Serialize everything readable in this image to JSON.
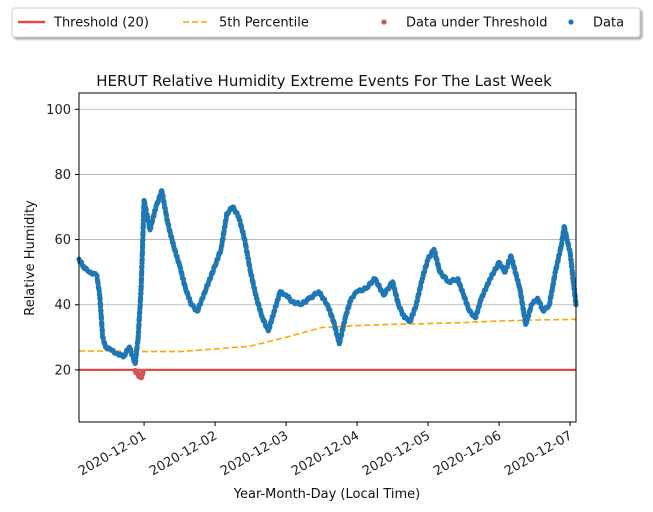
{
  "chart_data": {
    "type": "scatter",
    "title": "HERUT Relative Humidity Extreme Events For The Last Week",
    "xlabel": "Year-Month-Day (Local Time)",
    "ylabel": "Relative Humidity",
    "x_range": [
      "2020-11-30T02:00",
      "2020-12-07T02:00"
    ],
    "ylim": [
      4,
      105
    ],
    "x_ticks": [
      "2020-12-01",
      "2020-12-02",
      "2020-12-03",
      "2020-12-04",
      "2020-12-05",
      "2020-12-06",
      "2020-12-07"
    ],
    "y_ticks": [
      20,
      40,
      60,
      80,
      100
    ],
    "grid": "horizontal",
    "legend": {
      "placement": "top-outside",
      "entries": [
        {
          "label": "Threshold (20)",
          "color": "#e24a4a",
          "marker": "line"
        },
        {
          "label": "5th Percentile",
          "color": "#ffa500",
          "marker": "dashed-line"
        },
        {
          "label": "Data under Threshold",
          "color": "#d35454",
          "marker": "dot"
        },
        {
          "label": "Data",
          "color": "#1f77b4",
          "marker": "dot"
        }
      ]
    },
    "threshold": {
      "name": "Threshold (20)",
      "value": 20,
      "color": "#e24a4a"
    },
    "percentile_5th": {
      "name": "5th Percentile",
      "color": "#ffa500",
      "points": [
        [
          "2020-11-30T02:00",
          25.8
        ],
        [
          "2020-11-30T14:00",
          25.8
        ],
        [
          "2020-12-01T00:00",
          25.6
        ],
        [
          "2020-12-01T12:00",
          25.6
        ],
        [
          "2020-12-02T00:00",
          26.4
        ],
        [
          "2020-12-02T12:00",
          27.3
        ],
        [
          "2020-12-03T00:00",
          30.0
        ],
        [
          "2020-12-03T12:00",
          33.0
        ],
        [
          "2020-12-04T00:00",
          33.6
        ],
        [
          "2020-12-04T12:00",
          34.0
        ],
        [
          "2020-12-05T00:00",
          34.2
        ],
        [
          "2020-12-05T12:00",
          34.5
        ],
        [
          "2020-12-06T00:00",
          35.0
        ],
        [
          "2020-12-06T12:00",
          35.3
        ],
        [
          "2020-12-07T02:00",
          35.5
        ]
      ]
    },
    "series": [
      {
        "name": "Data",
        "color": "#1f77b4",
        "points": [
          [
            "2020-11-30T02:00",
            54
          ],
          [
            "2020-11-30T04:00",
            51
          ],
          [
            "2020-11-30T06:00",
            50
          ],
          [
            "2020-11-30T08:00",
            49
          ],
          [
            "2020-11-30T09:00",
            43
          ],
          [
            "2020-11-30T10:00",
            30
          ],
          [
            "2020-11-30T11:00",
            27
          ],
          [
            "2020-11-30T13:00",
            26
          ],
          [
            "2020-11-30T15:00",
            25
          ],
          [
            "2020-11-30T17:00",
            24
          ],
          [
            "2020-11-30T19:00",
            27
          ],
          [
            "2020-11-30T21:00",
            22
          ],
          [
            "2020-11-30T22:00",
            30
          ],
          [
            "2020-11-30T23:00",
            45
          ],
          [
            "2020-12-01T00:00",
            72
          ],
          [
            "2020-12-01T02:00",
            63
          ],
          [
            "2020-12-01T04:00",
            70
          ],
          [
            "2020-12-01T06:00",
            75
          ],
          [
            "2020-12-01T08:00",
            65
          ],
          [
            "2020-12-01T10:00",
            58
          ],
          [
            "2020-12-01T12:00",
            52
          ],
          [
            "2020-12-01T14:00",
            45
          ],
          [
            "2020-12-01T16:00",
            40
          ],
          [
            "2020-12-01T18:00",
            38
          ],
          [
            "2020-12-01T21:00",
            45
          ],
          [
            "2020-12-02T00:00",
            52
          ],
          [
            "2020-12-02T02:00",
            57
          ],
          [
            "2020-12-02T04:00",
            68
          ],
          [
            "2020-12-02T06:00",
            70
          ],
          [
            "2020-12-02T08:00",
            67
          ],
          [
            "2020-12-02T10:00",
            60
          ],
          [
            "2020-12-02T12:00",
            50
          ],
          [
            "2020-12-02T14:00",
            42
          ],
          [
            "2020-12-02T16:00",
            36
          ],
          [
            "2020-12-02T18:00",
            32
          ],
          [
            "2020-12-02T20:00",
            38
          ],
          [
            "2020-12-02T22:00",
            44
          ],
          [
            "2020-12-03T00:00",
            43
          ],
          [
            "2020-12-03T02:00",
            41
          ],
          [
            "2020-12-03T05:00",
            40
          ],
          [
            "2020-12-03T08:00",
            42
          ],
          [
            "2020-12-03T11:00",
            44
          ],
          [
            "2020-12-03T14:00",
            40
          ],
          [
            "2020-12-03T16:00",
            35
          ],
          [
            "2020-12-03T18:00",
            28
          ],
          [
            "2020-12-03T20:00",
            36
          ],
          [
            "2020-12-03T22:00",
            42
          ],
          [
            "2020-12-04T00:00",
            44
          ],
          [
            "2020-12-04T03:00",
            45
          ],
          [
            "2020-12-04T06:00",
            48
          ],
          [
            "2020-12-04T09:00",
            43
          ],
          [
            "2020-12-04T12:00",
            47
          ],
          [
            "2020-12-04T14:00",
            40
          ],
          [
            "2020-12-04T16:00",
            36
          ],
          [
            "2020-12-04T18:00",
            35
          ],
          [
            "2020-12-04T20:00",
            40
          ],
          [
            "2020-12-04T22:00",
            48
          ],
          [
            "2020-12-05T00:00",
            54
          ],
          [
            "2020-12-05T02:00",
            57
          ],
          [
            "2020-12-05T04:00",
            50
          ],
          [
            "2020-12-05T07:00",
            47
          ],
          [
            "2020-12-05T10:00",
            48
          ],
          [
            "2020-12-05T12:00",
            43
          ],
          [
            "2020-12-05T14:00",
            38
          ],
          [
            "2020-12-05T16:00",
            36
          ],
          [
            "2020-12-05T18:00",
            42
          ],
          [
            "2020-12-05T21:00",
            48
          ],
          [
            "2020-12-06T00:00",
            53
          ],
          [
            "2020-12-06T02:00",
            50
          ],
          [
            "2020-12-06T04:00",
            55
          ],
          [
            "2020-12-06T07:00",
            45
          ],
          [
            "2020-12-06T09:00",
            34
          ],
          [
            "2020-12-06T11:00",
            40
          ],
          [
            "2020-12-06T13:00",
            42
          ],
          [
            "2020-12-06T15:00",
            38
          ],
          [
            "2020-12-06T17:00",
            40
          ],
          [
            "2020-12-06T19:00",
            50
          ],
          [
            "2020-12-06T21:00",
            58
          ],
          [
            "2020-12-06T22:00",
            64
          ],
          [
            "2020-12-06T23:00",
            60
          ],
          [
            "2020-12-07T00:00",
            56
          ],
          [
            "2020-12-07T01:00",
            48
          ],
          [
            "2020-12-07T02:00",
            40
          ]
        ]
      },
      {
        "name": "Data under Threshold",
        "color": "#d35454",
        "points": [
          [
            "2020-11-30T21:00",
            19.8
          ],
          [
            "2020-11-30T21:30",
            19.2
          ],
          [
            "2020-11-30T22:00",
            18.5
          ],
          [
            "2020-11-30T22:30",
            18.0
          ],
          [
            "2020-11-30T23:00",
            17.6
          ],
          [
            "2020-11-30T23:20",
            18.4
          ],
          [
            "2020-11-30T23:40",
            19.5
          ]
        ]
      }
    ]
  }
}
